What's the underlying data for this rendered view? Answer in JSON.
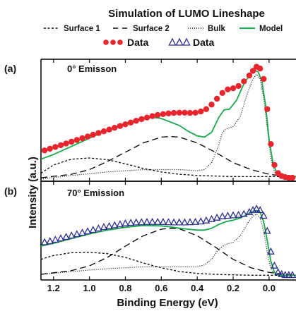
{
  "chart_data": {
    "type": "line",
    "title": "Simulation of LUMO Lineshape",
    "xlabel": "Binding Energy (eV)",
    "ylabel": "Intensity (a.u.)",
    "x_reversed": true,
    "xlim": [
      1.27,
      -0.15
    ],
    "ylim": [
      0,
      1.05
    ],
    "xticks": [
      1.2,
      1.0,
      0.8,
      0.6,
      0.4,
      0.2,
      0.0
    ],
    "xtick_labels": [
      "1.2",
      "1.0",
      "0.8",
      "0.6",
      "0.4",
      "0.2",
      "0.0"
    ],
    "grid": false,
    "legend": {
      "placement": "top",
      "entries": [
        {
          "label": "Surface 1",
          "style": "short-dash",
          "color": "#000000"
        },
        {
          "label": "Surface 2",
          "style": "long-dash",
          "color": "#000000"
        },
        {
          "label": "Bulk",
          "style": "dotted",
          "color": "#000000"
        },
        {
          "label": "Model",
          "style": "solid",
          "color": "#19a84a"
        },
        {
          "label": "Data",
          "style": "filled-circles",
          "color": "#e8242c"
        },
        {
          "label": "Data",
          "style": "open-triangles",
          "color": "#2b2d8f"
        }
      ]
    },
    "panels": [
      {
        "tag": "(a)",
        "label": "0° Emisson",
        "data_marker": "circle",
        "data_color": "#e8242c",
        "data": {
          "x": [
            1.25,
            1.22,
            1.19,
            1.16,
            1.13,
            1.1,
            1.07,
            1.04,
            1.01,
            0.98,
            0.95,
            0.92,
            0.89,
            0.86,
            0.83,
            0.8,
            0.77,
            0.74,
            0.71,
            0.68,
            0.65,
            0.62,
            0.59,
            0.56,
            0.53,
            0.5,
            0.47,
            0.44,
            0.41,
            0.38,
            0.35,
            0.32,
            0.29,
            0.26,
            0.23,
            0.2,
            0.17,
            0.14,
            0.11,
            0.09,
            0.07,
            0.05,
            0.03,
            0.01,
            -0.01,
            -0.03,
            -0.05,
            -0.07,
            -0.09,
            -0.11,
            -0.13
          ],
          "y": [
            0.265,
            0.28,
            0.295,
            0.31,
            0.325,
            0.34,
            0.355,
            0.37,
            0.385,
            0.4,
            0.415,
            0.43,
            0.445,
            0.46,
            0.475,
            0.49,
            0.505,
            0.52,
            0.535,
            0.548,
            0.56,
            0.57,
            0.578,
            0.584,
            0.588,
            0.59,
            0.59,
            0.588,
            0.59,
            0.6,
            0.62,
            0.66,
            0.71,
            0.76,
            0.79,
            0.8,
            0.82,
            0.86,
            0.91,
            0.95,
            0.985,
            0.97,
            0.88,
            0.62,
            0.32,
            0.14,
            0.07,
            0.045,
            0.035,
            0.03,
            0.03
          ]
        },
        "model": {
          "x": [
            1.27,
            1.2,
            1.1,
            1.0,
            0.9,
            0.8,
            0.7,
            0.65,
            0.6,
            0.5,
            0.45,
            0.4,
            0.36,
            0.32,
            0.28,
            0.25,
            0.22,
            0.18,
            0.14,
            0.1,
            0.08,
            0.06,
            0.04,
            0.02,
            0.0,
            -0.02,
            -0.04,
            -0.06,
            -0.1,
            -0.15
          ],
          "y": [
            0.19,
            0.23,
            0.3,
            0.37,
            0.44,
            0.5,
            0.545,
            0.55,
            0.54,
            0.48,
            0.43,
            0.39,
            0.38,
            0.42,
            0.55,
            0.615,
            0.62,
            0.7,
            0.84,
            0.93,
            0.955,
            0.94,
            0.86,
            0.66,
            0.36,
            0.17,
            0.08,
            0.05,
            0.04,
            0.04
          ]
        },
        "surface1": {
          "x": [
            1.27,
            1.2,
            1.1,
            1.0,
            0.9,
            0.8,
            0.7,
            0.6,
            0.5,
            0.4,
            0.3,
            0.2,
            0.1,
            0.0,
            -0.15
          ],
          "y": [
            0.07,
            0.14,
            0.19,
            0.2,
            0.185,
            0.15,
            0.11,
            0.08,
            0.06,
            0.05,
            0.045,
            0.04,
            0.04,
            0.04,
            0.04
          ]
        },
        "surface2": {
          "x": [
            1.27,
            1.1,
            1.0,
            0.9,
            0.8,
            0.7,
            0.6,
            0.55,
            0.5,
            0.4,
            0.3,
            0.2,
            0.1,
            0.0,
            -0.1,
            -0.15
          ],
          "y": [
            0.03,
            0.06,
            0.1,
            0.17,
            0.25,
            0.33,
            0.38,
            0.385,
            0.38,
            0.33,
            0.25,
            0.16,
            0.1,
            0.06,
            0.04,
            0.04
          ]
        },
        "bulk": {
          "x": [
            1.27,
            1.1,
            0.9,
            0.7,
            0.5,
            0.4,
            0.36,
            0.32,
            0.28,
            0.26,
            0.24,
            0.2,
            0.16,
            0.12,
            0.09,
            0.07,
            0.05,
            0.03,
            0.01,
            -0.01,
            -0.03,
            -0.05,
            -0.1,
            -0.15
          ],
          "y": [
            0.02,
            0.05,
            0.08,
            0.1,
            0.1,
            0.09,
            0.1,
            0.16,
            0.31,
            0.42,
            0.45,
            0.47,
            0.56,
            0.76,
            0.88,
            0.92,
            0.88,
            0.72,
            0.46,
            0.2,
            0.08,
            0.04,
            0.03,
            0.03
          ]
        }
      },
      {
        "tag": "(b)",
        "label": "70° Emission",
        "data_marker": "triangle",
        "data_color": "#2b2d8f",
        "data": {
          "x": [
            1.25,
            1.22,
            1.19,
            1.16,
            1.13,
            1.1,
            1.07,
            1.04,
            1.01,
            0.98,
            0.95,
            0.92,
            0.89,
            0.86,
            0.83,
            0.8,
            0.77,
            0.74,
            0.71,
            0.68,
            0.65,
            0.62,
            0.59,
            0.56,
            0.53,
            0.5,
            0.47,
            0.44,
            0.41,
            0.38,
            0.35,
            0.32,
            0.29,
            0.26,
            0.23,
            0.2,
            0.17,
            0.14,
            0.11,
            0.09,
            0.07,
            0.05,
            0.03,
            0.01,
            -0.01,
            -0.03,
            -0.05,
            -0.07,
            -0.09,
            -0.11,
            -0.13
          ],
          "y": [
            0.4,
            0.41,
            0.425,
            0.44,
            0.455,
            0.47,
            0.485,
            0.5,
            0.515,
            0.53,
            0.545,
            0.56,
            0.57,
            0.58,
            0.59,
            0.6,
            0.605,
            0.61,
            0.612,
            0.614,
            0.615,
            0.615,
            0.614,
            0.612,
            0.61,
            0.61,
            0.61,
            0.612,
            0.615,
            0.62,
            0.63,
            0.645,
            0.66,
            0.675,
            0.68,
            0.685,
            0.69,
            0.7,
            0.72,
            0.74,
            0.755,
            0.74,
            0.68,
            0.52,
            0.3,
            0.15,
            0.08,
            0.06,
            0.05,
            0.05,
            0.05
          ]
        },
        "model": {
          "x": [
            1.27,
            1.2,
            1.1,
            1.0,
            0.9,
            0.8,
            0.7,
            0.6,
            0.55,
            0.5,
            0.45,
            0.4,
            0.36,
            0.32,
            0.28,
            0.24,
            0.2,
            0.16,
            0.12,
            0.09,
            0.07,
            0.05,
            0.03,
            0.01,
            -0.01,
            -0.03,
            -0.05,
            -0.1,
            -0.15
          ],
          "y": [
            0.36,
            0.39,
            0.44,
            0.49,
            0.53,
            0.56,
            0.58,
            0.575,
            0.565,
            0.55,
            0.54,
            0.53,
            0.53,
            0.55,
            0.59,
            0.62,
            0.635,
            0.66,
            0.7,
            0.73,
            0.74,
            0.72,
            0.62,
            0.42,
            0.2,
            0.08,
            0.05,
            0.05,
            0.05
          ]
        },
        "surface1": {
          "x": [
            1.27,
            1.2,
            1.1,
            1.0,
            0.9,
            0.8,
            0.7,
            0.6,
            0.5,
            0.4,
            0.3,
            0.2,
            0.1,
            0.0,
            -0.15
          ],
          "y": [
            0.22,
            0.26,
            0.29,
            0.295,
            0.28,
            0.24,
            0.18,
            0.13,
            0.09,
            0.07,
            0.06,
            0.055,
            0.05,
            0.05,
            0.05
          ]
        },
        "surface2": {
          "x": [
            1.27,
            1.1,
            1.0,
            0.9,
            0.8,
            0.7,
            0.6,
            0.55,
            0.5,
            0.4,
            0.3,
            0.2,
            0.1,
            0.0,
            -0.1,
            -0.15
          ],
          "y": [
            0.06,
            0.1,
            0.15,
            0.24,
            0.36,
            0.47,
            0.54,
            0.55,
            0.545,
            0.47,
            0.35,
            0.22,
            0.13,
            0.08,
            0.06,
            0.05
          ]
        },
        "bulk": {
          "x": [
            1.27,
            1.1,
            0.9,
            0.7,
            0.5,
            0.4,
            0.36,
            0.32,
            0.28,
            0.24,
            0.2,
            0.16,
            0.12,
            0.09,
            0.07,
            0.05,
            0.03,
            0.01,
            -0.01,
            -0.03,
            -0.05,
            -0.1,
            -0.15
          ],
          "y": [
            0.06,
            0.09,
            0.12,
            0.14,
            0.14,
            0.14,
            0.16,
            0.22,
            0.33,
            0.38,
            0.4,
            0.47,
            0.6,
            0.68,
            0.7,
            0.66,
            0.52,
            0.3,
            0.12,
            0.06,
            0.05,
            0.05,
            0.05
          ]
        }
      }
    ]
  }
}
